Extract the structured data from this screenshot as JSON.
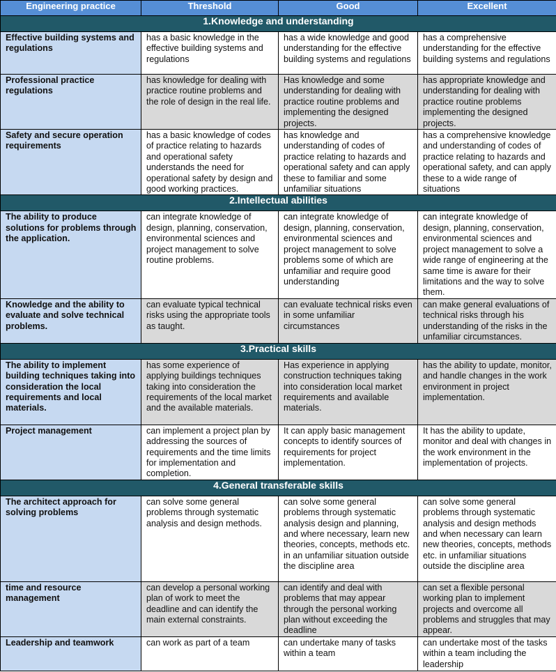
{
  "headers": [
    "Engineering practice",
    "Threshold",
    "Good",
    "Excellent"
  ],
  "colors": {
    "header": "#558ed5",
    "section": "#215968",
    "practice": "#c6d9f1",
    "alt_row": "#d9d9d9"
  },
  "sections": [
    {
      "title": "1.Knowledge and understanding",
      "rows": [
        {
          "practice": "Effective building systems and regulations",
          "threshold": "has a basic knowledge in the effective building systems and regulations",
          "good": "has a wide knowledge and good understanding for the effective building systems and regulations",
          "excellent": "has a comprehensive understanding for the effective building systems and regulations"
        },
        {
          "practice": "Professional practice regulations",
          "threshold": "has knowledge for dealing with practice routine problems and the role of design in the real life.",
          "good": "Has knowledge and some understanding for dealing with practice routine problems and implementing the designed projects.",
          "excellent": "has appropriate knowledge and understanding for dealing with practice routine problems implementing the designed projects."
        },
        {
          "practice": "Safety and secure operation requirements",
          "threshold": "has a basic knowledge of codes of practice relating to hazards and operational safety understands the need for operational safety by design and good working practices.",
          "good": "has knowledge and understanding of codes of practice relating to hazards and operational safety and can apply these to familiar and some unfamiliar situations",
          "excellent": "has a comprehensive knowledge and understanding of codes of practice relating to hazards and operational safety, and can apply these to a wide range of situations"
        }
      ]
    },
    {
      "title": "2.Intellectual abilities",
      "rows": [
        {
          "practice": "The ability to produce solutions for problems through the application.",
          "threshold": "can integrate knowledge of design, planning, conservation, environmental sciences and project management to solve routine problems.",
          "good": "can integrate knowledge of design, planning, conservation, environmental sciences and project management to solve problems some of which are unfamiliar and require good understanding",
          "excellent": "can integrate knowledge of design, planning, conservation, environmental sciences and project management to solve a wide range of engineering at the same time is aware for their limitations and the way to solve them."
        },
        {
          "practice": "Knowledge and the ability to evaluate and solve technical problems.",
          "threshold": "can evaluate typical technical risks using the appropriate tools as taught.",
          "good": "can evaluate technical risks even in some unfamiliar circumstances",
          "excellent": "can make general evaluations of technical risks through his understanding of the risks in the unfamiliar circumstances."
        }
      ]
    },
    {
      "title": "3.Practical skills",
      "rows": [
        {
          "practice": "The ability to implement building techniques taking into consideration the local requirements and local materials.",
          "threshold": "has some experience of applying buildings techniques taking into consideration the requirements of the local market and the available materials.",
          "good": "Has experience in applying construction techniques taking into consideration local market requirements and available materials.",
          "excellent": "has the ability to update, monitor, and handle changes in the work environment in project implementation."
        },
        {
          "practice": "Project management",
          "threshold": "can implement a project plan by addressing the sources of requirements and the time limits for implementation and completion.",
          "good": "It can apply basic management concepts to identify sources of requirements for project implementation.",
          "excellent": "It has the ability to update, monitor and deal with changes in the work environment in the implementation of projects."
        }
      ]
    },
    {
      "title": "4.General transferable skills",
      "rows": [
        {
          "practice": "The architect approach for solving problems",
          "threshold": "can solve some general problems through systematic analysis and design methods.",
          "good": "can solve some general problems through systematic analysis design and planning, and where necessary, learn new theories, concepts, methods etc. in an unfamiliar situation outside the discipline area",
          "excellent": "can solve some general problems through systematic analysis and design methods and when necessary can learn new theories, concepts, methods etc. in unfamiliar situations outside the discipline area"
        },
        {
          "practice": "time and resource management",
          "threshold": "can develop a personal working plan of work to meet the deadline and can identify the main external constraints.",
          "good": "can identify and deal with problems that may appear through the personal working plan without exceeding the deadline",
          "excellent": "can set a flexible personal working plan to implement projects and overcome all problems and struggles that may appear."
        },
        {
          "practice": "Leadership and teamwork",
          "threshold": "can work as part of a team",
          "good": "can undertake many of tasks within a team",
          "excellent": "can undertake most of the tasks within a team including the leadership"
        }
      ]
    }
  ]
}
